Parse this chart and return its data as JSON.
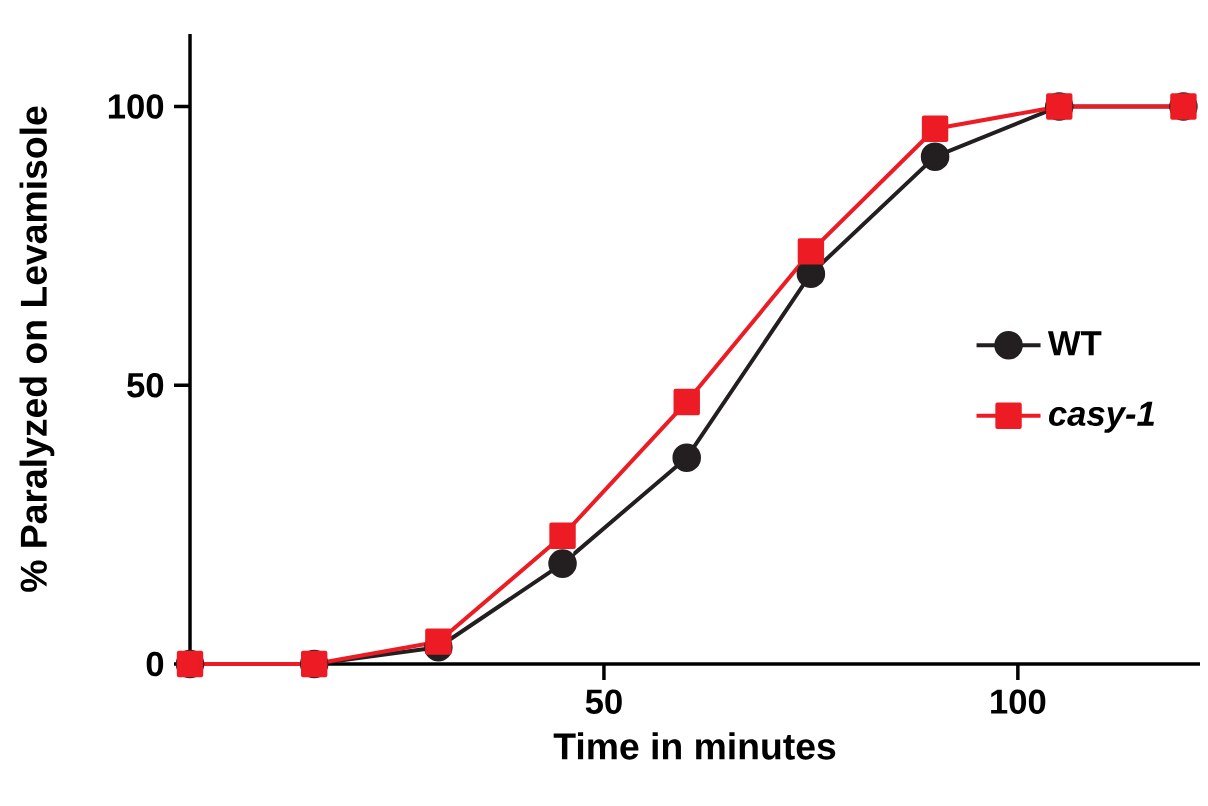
{
  "chart_data": {
    "type": "line",
    "xlabel": "Time in minutes",
    "ylabel": "% Paralyzed on Levamisole",
    "x": [
      0,
      15,
      30,
      45,
      60,
      75,
      90,
      105,
      120
    ],
    "xlim": [
      0,
      122
    ],
    "ylim": [
      0,
      113
    ],
    "xticks": [
      50,
      100
    ],
    "yticks": [
      0,
      50,
      100
    ],
    "legend": "right",
    "grid": false,
    "series": [
      {
        "name": "WT",
        "color": "#231f20",
        "marker": "circle",
        "values": [
          0,
          0,
          3,
          18,
          37,
          70,
          91,
          100,
          100
        ]
      },
      {
        "name": "casy-1",
        "color": "#ed1c24",
        "marker": "square",
        "values": [
          0,
          0,
          4,
          23,
          47,
          74,
          96,
          100,
          100
        ],
        "errors": [
          null,
          null,
          null,
          3,
          4,
          2,
          null,
          null,
          null
        ]
      }
    ]
  }
}
